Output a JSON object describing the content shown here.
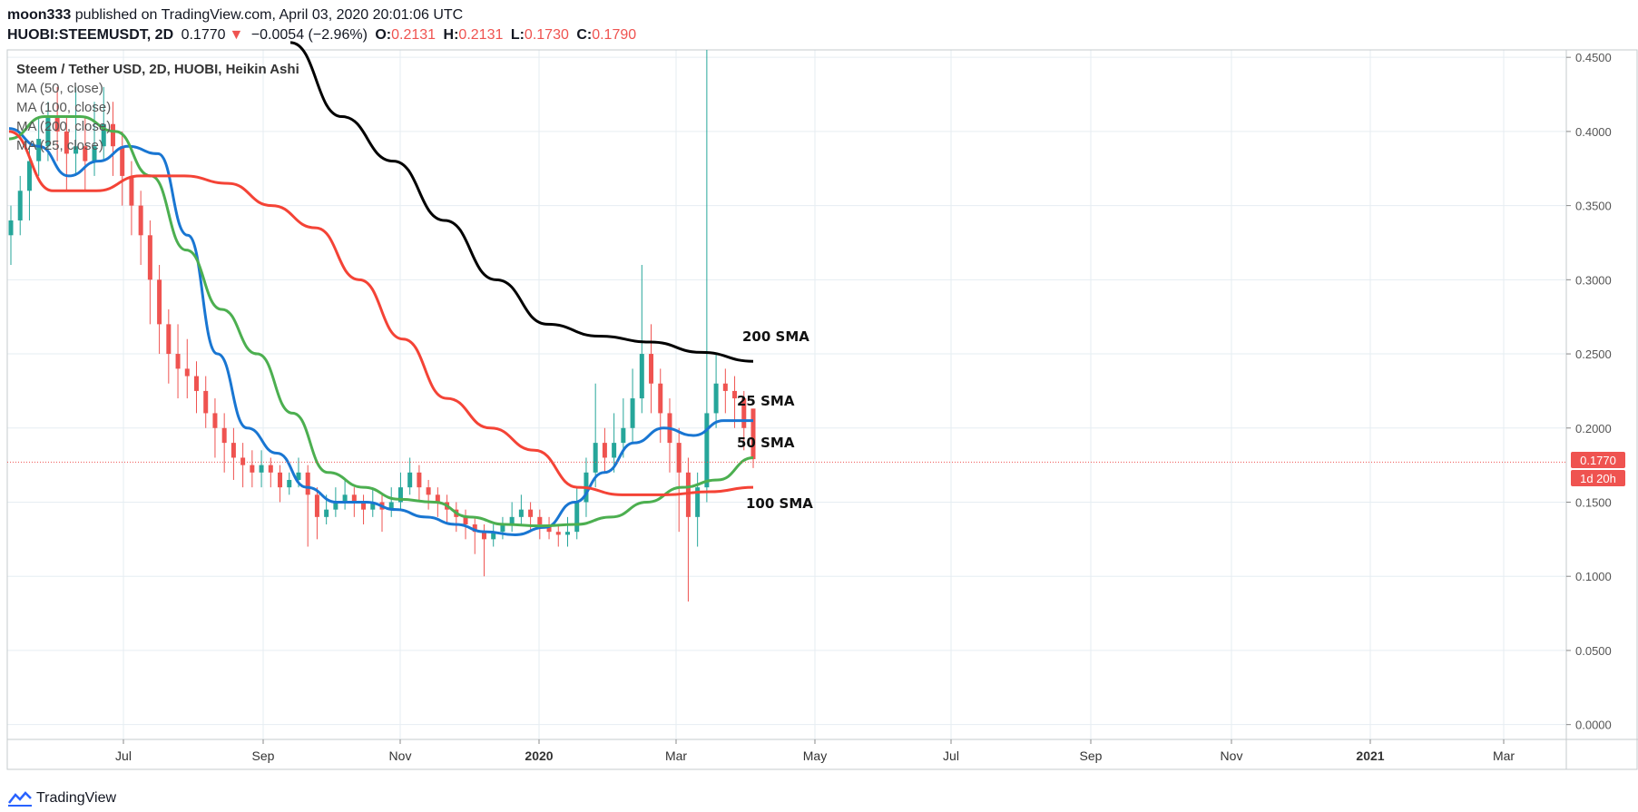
{
  "header": {
    "author": "moon333",
    "published": "published on TradingView.com, April 03, 2020 20:01:06 UTC",
    "symbol": "HUOBI:STEEMUSDT, 2D",
    "last": "0.1770",
    "change": "−0.0054 (−2.96%)",
    "o_label": "O:",
    "o": "0.2131",
    "h_label": "H:",
    "h": "0.2131",
    "l_label": "L:",
    "l": "0.1730",
    "c_label": "C:",
    "c": "0.1790"
  },
  "legend": {
    "main": "Steem / Tether USD, 2D, HUOBI, Heikin Ashi",
    "ma50": "MA (50, close)",
    "ma100": "MA (100, close)",
    "ma200": "MA (200, close)",
    "ma25": "MA (25, close)"
  },
  "footer": {
    "brand": "TradingView"
  },
  "colors": {
    "up": "#26a69a",
    "down": "#ef5350",
    "ma25": "#1976d2",
    "ma50": "#4caf50",
    "ma100": "#f44336",
    "ma200": "#000000",
    "price_line": "#ef5350",
    "grid": "#e6edf2"
  },
  "chart_data": {
    "type": "candlestick",
    "style": "Heikin Ashi",
    "ylim": [
      -0.01,
      0.455
    ],
    "yticks": [
      "0.0000",
      "0.0500",
      "0.1000",
      "0.1500",
      "0.2000",
      "0.2500",
      "0.3000",
      "0.3500",
      "0.4000",
      "0.4500"
    ],
    "xticks": [
      "Jul",
      "Sep",
      "Nov",
      "2020",
      "Mar",
      "May",
      "Jul",
      "Sep",
      "Nov",
      "2021",
      "Mar"
    ],
    "price_label": "0.1770",
    "countdown_label": "1d 20h",
    "current_price": 0.177,
    "series": [
      {
        "name": "MA (25, close)",
        "label": "25 SMA",
        "values": [
          0.402,
          0.39,
          0.37,
          0.38,
          0.39,
          0.385,
          0.33,
          0.25,
          0.2,
          0.183,
          0.16,
          0.15,
          0.15,
          0.145,
          0.14,
          0.135,
          0.13,
          0.128,
          0.133,
          0.15,
          0.17,
          0.19,
          0.2,
          0.195,
          0.205,
          0.205
        ]
      },
      {
        "name": "MA (50, close)",
        "label": "50 SMA",
        "values": [
          0.395,
          0.41,
          0.41,
          0.4,
          0.37,
          0.32,
          0.28,
          0.25,
          0.21,
          0.17,
          0.16,
          0.152,
          0.15,
          0.14,
          0.135,
          0.134,
          0.135,
          0.14,
          0.15,
          0.16,
          0.165,
          0.18
        ]
      },
      {
        "name": "MA (100, close)",
        "label": "100 SMA",
        "values": [
          0.4,
          0.36,
          0.36,
          0.37,
          0.37,
          0.365,
          0.35,
          0.335,
          0.3,
          0.26,
          0.22,
          0.2,
          0.185,
          0.16,
          0.155,
          0.155,
          0.157,
          0.16
        ]
      },
      {
        "name": "MA (200, close)",
        "label": "200 SMA",
        "values": [
          0.46,
          0.41,
          0.38,
          0.34,
          0.3,
          0.27,
          0.262,
          0.258,
          0.251,
          0.245
        ]
      }
    ],
    "candles": [
      [
        0.33,
        0.34,
        0.35,
        0.31
      ],
      [
        0.34,
        0.36,
        0.37,
        0.33
      ],
      [
        0.36,
        0.38,
        0.39,
        0.34
      ],
      [
        0.38,
        0.395,
        0.41,
        0.37
      ],
      [
        0.39,
        0.41,
        0.42,
        0.38
      ],
      [
        0.41,
        0.4,
        0.43,
        0.38
      ],
      [
        0.4,
        0.385,
        0.41,
        0.36
      ],
      [
        0.385,
        0.39,
        0.43,
        0.37
      ],
      [
        0.39,
        0.38,
        0.41,
        0.36
      ],
      [
        0.38,
        0.39,
        0.42,
        0.37
      ],
      [
        0.39,
        0.405,
        0.43,
        0.38
      ],
      [
        0.405,
        0.39,
        0.42,
        0.37
      ],
      [
        0.39,
        0.37,
        0.4,
        0.35
      ],
      [
        0.37,
        0.35,
        0.38,
        0.33
      ],
      [
        0.35,
        0.33,
        0.36,
        0.31
      ],
      [
        0.33,
        0.3,
        0.34,
        0.27
      ],
      [
        0.3,
        0.27,
        0.31,
        0.25
      ],
      [
        0.27,
        0.25,
        0.28,
        0.23
      ],
      [
        0.25,
        0.24,
        0.27,
        0.22
      ],
      [
        0.24,
        0.235,
        0.26,
        0.22
      ],
      [
        0.235,
        0.225,
        0.245,
        0.21
      ],
      [
        0.225,
        0.21,
        0.235,
        0.2
      ],
      [
        0.21,
        0.2,
        0.22,
        0.18
      ],
      [
        0.2,
        0.19,
        0.21,
        0.17
      ],
      [
        0.19,
        0.18,
        0.2,
        0.165
      ],
      [
        0.18,
        0.175,
        0.19,
        0.16
      ],
      [
        0.175,
        0.17,
        0.185,
        0.16
      ],
      [
        0.17,
        0.175,
        0.185,
        0.16
      ],
      [
        0.175,
        0.17,
        0.18,
        0.16
      ],
      [
        0.17,
        0.16,
        0.175,
        0.15
      ],
      [
        0.16,
        0.165,
        0.17,
        0.155
      ],
      [
        0.165,
        0.17,
        0.18,
        0.16
      ],
      [
        0.17,
        0.155,
        0.175,
        0.12
      ],
      [
        0.155,
        0.14,
        0.16,
        0.125
      ],
      [
        0.14,
        0.145,
        0.155,
        0.135
      ],
      [
        0.145,
        0.15,
        0.16,
        0.14
      ],
      [
        0.15,
        0.155,
        0.165,
        0.145
      ],
      [
        0.155,
        0.15,
        0.16,
        0.14
      ],
      [
        0.15,
        0.145,
        0.155,
        0.135
      ],
      [
        0.145,
        0.15,
        0.16,
        0.14
      ],
      [
        0.15,
        0.145,
        0.155,
        0.13
      ],
      [
        0.145,
        0.15,
        0.16,
        0.14
      ],
      [
        0.15,
        0.16,
        0.17,
        0.145
      ],
      [
        0.16,
        0.17,
        0.18,
        0.155
      ],
      [
        0.17,
        0.16,
        0.175,
        0.15
      ],
      [
        0.16,
        0.155,
        0.165,
        0.145
      ],
      [
        0.155,
        0.15,
        0.16,
        0.14
      ],
      [
        0.15,
        0.145,
        0.155,
        0.135
      ],
      [
        0.145,
        0.14,
        0.15,
        0.13
      ],
      [
        0.14,
        0.135,
        0.145,
        0.125
      ],
      [
        0.135,
        0.13,
        0.14,
        0.115
      ],
      [
        0.13,
        0.125,
        0.135,
        0.1
      ],
      [
        0.125,
        0.13,
        0.135,
        0.12
      ],
      [
        0.13,
        0.135,
        0.14,
        0.125
      ],
      [
        0.135,
        0.14,
        0.15,
        0.13
      ],
      [
        0.14,
        0.145,
        0.155,
        0.135
      ],
      [
        0.145,
        0.14,
        0.15,
        0.13
      ],
      [
        0.14,
        0.135,
        0.145,
        0.125
      ],
      [
        0.135,
        0.13,
        0.14,
        0.125
      ],
      [
        0.13,
        0.128,
        0.135,
        0.12
      ],
      [
        0.128,
        0.13,
        0.14,
        0.12
      ],
      [
        0.13,
        0.15,
        0.16,
        0.125
      ],
      [
        0.15,
        0.17,
        0.18,
        0.14
      ],
      [
        0.17,
        0.19,
        0.23,
        0.16
      ],
      [
        0.19,
        0.18,
        0.2,
        0.17
      ],
      [
        0.18,
        0.19,
        0.21,
        0.17
      ],
      [
        0.19,
        0.2,
        0.22,
        0.18
      ],
      [
        0.2,
        0.22,
        0.24,
        0.19
      ],
      [
        0.22,
        0.25,
        0.31,
        0.21
      ],
      [
        0.25,
        0.23,
        0.27,
        0.21
      ],
      [
        0.23,
        0.21,
        0.24,
        0.19
      ],
      [
        0.21,
        0.19,
        0.22,
        0.17
      ],
      [
        0.19,
        0.17,
        0.2,
        0.13
      ],
      [
        0.17,
        0.14,
        0.18,
        0.083
      ],
      [
        0.14,
        0.16,
        0.17,
        0.12
      ],
      [
        0.16,
        0.21,
        0.455,
        0.15
      ],
      [
        0.21,
        0.23,
        0.25,
        0.2
      ],
      [
        0.23,
        0.225,
        0.24,
        0.21
      ],
      [
        0.225,
        0.22,
        0.235,
        0.2
      ],
      [
        0.22,
        0.2,
        0.225,
        0.185
      ],
      [
        0.2131,
        0.179,
        0.2131,
        0.173
      ]
    ],
    "annotations": [
      "200 SMA",
      "25 SMA",
      "50 SMA",
      "100 SMA"
    ]
  }
}
